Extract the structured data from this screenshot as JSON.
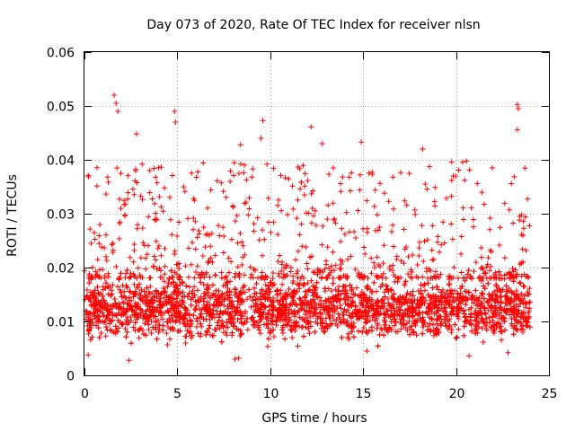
{
  "chart_data": {
    "type": "scatter",
    "title": "Day 073 of 2020, Rate Of TEC Index for receiver nlsn",
    "xlabel": "GPS time / hours",
    "ylabel": "ROTI / TECUs",
    "xlim": [
      0,
      25
    ],
    "ylim": [
      0,
      0.06
    ],
    "x_ticks": [
      0,
      5,
      10,
      15,
      20,
      25
    ],
    "x_tick_labels": [
      "0",
      "5",
      "10",
      "15",
      "20",
      "25"
    ],
    "y_ticks": [
      0,
      0.01,
      0.02,
      0.03,
      0.04,
      0.05,
      0.06
    ],
    "y_tick_labels": [
      "0",
      "0.01",
      "0.02",
      "0.03",
      "0.04",
      "0.05",
      "0.06"
    ],
    "grid": true,
    "marker": "+",
    "color": "#ff0000",
    "data_range_hours": [
      0,
      24
    ],
    "series": [
      {
        "name": "ROTI",
        "typical_band": [
          0.007,
          0.018
        ],
        "peaks": [
          {
            "x": 1.6,
            "y": 0.052
          },
          {
            "x": 1.7,
            "y": 0.0505
          },
          {
            "x": 1.8,
            "y": 0.049
          },
          {
            "x": 2.8,
            "y": 0.0448
          },
          {
            "x": 4.85,
            "y": 0.049
          },
          {
            "x": 4.9,
            "y": 0.047
          },
          {
            "x": 8.4,
            "y": 0.0428
          },
          {
            "x": 9.6,
            "y": 0.0473
          },
          {
            "x": 9.5,
            "y": 0.044
          },
          {
            "x": 12.2,
            "y": 0.0461
          },
          {
            "x": 12.8,
            "y": 0.043
          },
          {
            "x": 14.9,
            "y": 0.0433
          },
          {
            "x": 18.2,
            "y": 0.042
          },
          {
            "x": 23.3,
            "y": 0.0503
          },
          {
            "x": 23.35,
            "y": 0.0495
          },
          {
            "x": 23.3,
            "y": 0.0456
          }
        ],
        "lows": [
          {
            "x": 0.2,
            "y": 0.0038
          },
          {
            "x": 2.4,
            "y": 0.0028
          },
          {
            "x": 8.1,
            "y": 0.003
          },
          {
            "x": 8.3,
            "y": 0.0032
          },
          {
            "x": 15.2,
            "y": 0.0045
          },
          {
            "x": 20.7,
            "y": 0.0036
          },
          {
            "x": 22.8,
            "y": 0.0042
          }
        ]
      }
    ]
  }
}
